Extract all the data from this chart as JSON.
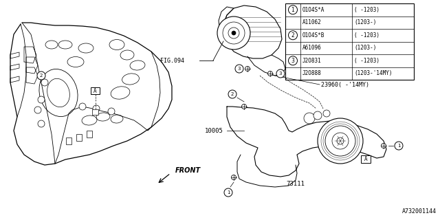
{
  "bg_color": "#ffffff",
  "line_color": "#000000",
  "text_color": "#000000",
  "fig_width": 6.4,
  "fig_height": 3.2,
  "dpi": 100,
  "parts_table": {
    "rows": [
      [
        "1",
        "O1O4S*A",
        "( -1203)"
      ],
      [
        "",
        "A11062",
        "(1203-)"
      ],
      [
        "2",
        "O1O4S*B",
        "( -1203)"
      ],
      [
        "",
        "A61096",
        "(1203-)"
      ],
      [
        "3",
        "J2O831",
        "( -1203)"
      ],
      [
        "",
        "J2O888",
        "(1203-'14MY)"
      ]
    ]
  },
  "labels": {
    "fig094": "FIG.094",
    "front": "FRONT",
    "part_23960": "23960( -'14MY)",
    "part_10005": "10005",
    "part_7311l": "73111",
    "doc_number": "A732001144"
  }
}
